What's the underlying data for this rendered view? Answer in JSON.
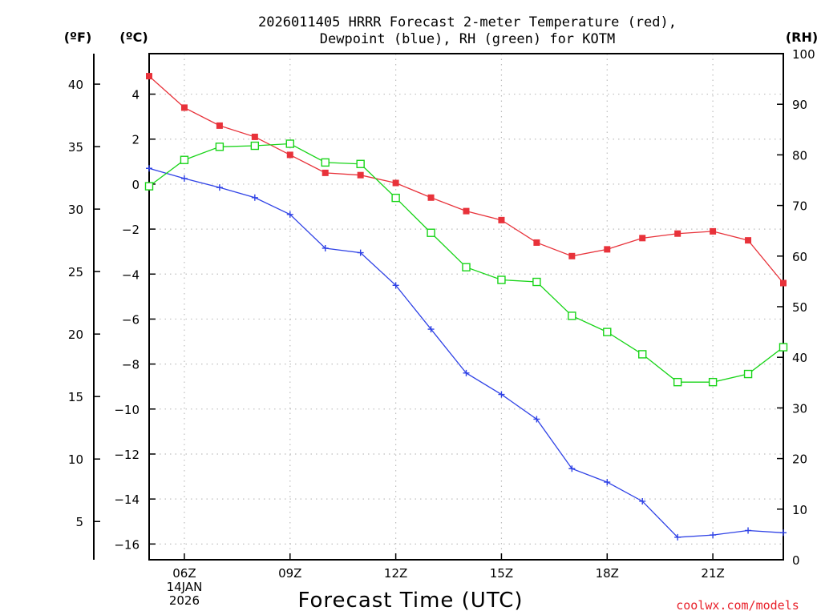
{
  "chart_data": {
    "type": "line",
    "title_line1": "2026011405 HRRR Forecast 2-meter Temperature (red),",
    "title_line2": "Dewpoint (blue), RH (green) for KOTM",
    "unit_f": "(ºF)",
    "unit_c": "(ºC)",
    "unit_rh": "(RH)",
    "xlabel": "Forecast Time (UTC)",
    "credit": "coolwx.com/models",
    "x_ticks": [
      {
        "hour": 6,
        "lines": [
          "06Z",
          "14JAN",
          "2026"
        ]
      },
      {
        "hour": 9,
        "lines": [
          "09Z"
        ]
      },
      {
        "hour": 12,
        "lines": [
          "12Z"
        ]
      },
      {
        "hour": 15,
        "lines": [
          "15Z"
        ]
      },
      {
        "hour": 18,
        "lines": [
          "18Z"
        ]
      },
      {
        "hour": 21,
        "lines": [
          "21Z"
        ]
      }
    ],
    "xlim": [
      5,
      23
    ],
    "ylim_c": [
      -16.7,
      5.8
    ],
    "c_ticks": [
      4,
      2,
      0,
      -2,
      -4,
      -6,
      -8,
      -10,
      -12,
      -14,
      -16
    ],
    "f_ticks": [
      40,
      35,
      30,
      25,
      20,
      15,
      10,
      5
    ],
    "rh_ticks": [
      100,
      90,
      80,
      70,
      60,
      50,
      40,
      30,
      20,
      10,
      0
    ],
    "rh_lim": [
      0,
      100
    ],
    "colors": {
      "temperature": "#e8323a",
      "dewpoint": "#2f42e6",
      "rh": "#18d418",
      "grid": "#bdbdbd"
    },
    "series": [
      {
        "name": "Temperature (red)",
        "axis": "c",
        "marker": "square-filled",
        "x": [
          5,
          6,
          7,
          8,
          9,
          10,
          11,
          12,
          13,
          14,
          15,
          16,
          17,
          18,
          19,
          20,
          21,
          22,
          23
        ],
        "values": [
          4.8,
          3.4,
          2.6,
          2.1,
          1.3,
          0.5,
          0.4,
          0.05,
          -0.6,
          -1.2,
          -1.6,
          -2.6,
          -3.2,
          -2.9,
          -2.4,
          -2.2,
          -2.1,
          -2.5,
          -4.4
        ]
      },
      {
        "name": "Dewpoint (blue)",
        "axis": "c",
        "marker": "plus",
        "x": [
          5,
          6,
          7,
          8,
          9,
          10,
          11,
          12,
          13,
          14,
          15,
          16,
          17,
          18,
          19,
          20,
          21,
          22,
          23
        ],
        "values": [
          0.7,
          0.25,
          -0.15,
          -0.6,
          -1.35,
          -2.85,
          -3.05,
          -4.5,
          -6.45,
          -8.4,
          -9.35,
          -10.45,
          -12.65,
          -13.25,
          -14.1,
          -15.7,
          -15.6,
          -15.4,
          -15.5
        ]
      },
      {
        "name": "RH (green)",
        "axis": "rh",
        "marker": "square-open",
        "x": [
          5,
          6,
          7,
          8,
          9,
          10,
          11,
          12,
          13,
          14,
          15,
          16,
          17,
          18,
          19,
          20,
          21,
          22,
          23
        ],
        "values": [
          73.8,
          79.0,
          81.6,
          81.8,
          82.2,
          78.5,
          78.2,
          71.5,
          64.6,
          57.8,
          55.3,
          54.9,
          48.2,
          45.0,
          40.6,
          35.1,
          35.1,
          36.7,
          42.0
        ]
      }
    ]
  }
}
